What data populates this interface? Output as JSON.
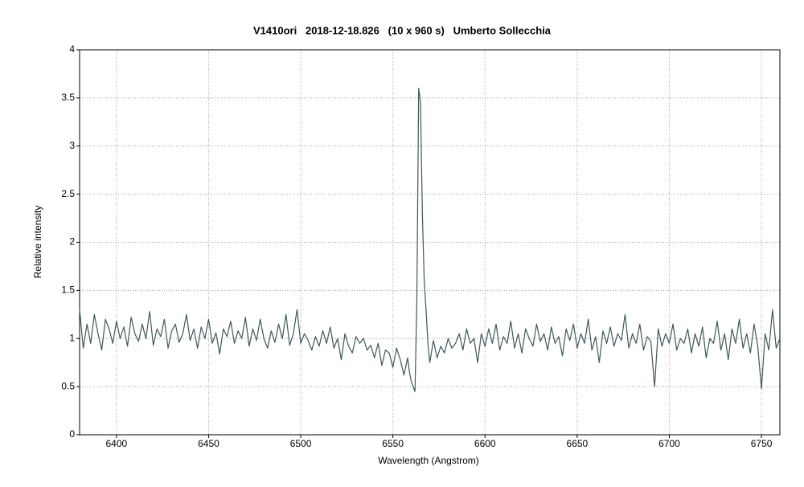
{
  "chart_data": {
    "type": "line",
    "title": "V1410ori   2018-12-18.826   (10 x 960 s)   Umberto Sollecchia",
    "xlabel": "Wavelength (Angstrom)",
    "ylabel": "Relative intensity",
    "xlim": [
      6380,
      6760
    ],
    "ylim": [
      0,
      4
    ],
    "xticks": [
      6400,
      6450,
      6500,
      6550,
      6600,
      6650,
      6700,
      6750
    ],
    "yticks": [
      0,
      0.5,
      1,
      1.5,
      2,
      2.5,
      3,
      3.5,
      4
    ],
    "grid": true,
    "series": [
      {
        "name": "V1410ori",
        "color": "#3e5858",
        "x": [
          6380,
          6382,
          6384,
          6386,
          6388,
          6390,
          6392,
          6394,
          6396,
          6398,
          6400,
          6402,
          6404,
          6406,
          6408,
          6410,
          6412,
          6414,
          6416,
          6418,
          6420,
          6422,
          6424,
          6426,
          6428,
          6430,
          6432,
          6434,
          6436,
          6438,
          6440,
          6442,
          6444,
          6446,
          6448,
          6450,
          6452,
          6454,
          6456,
          6458,
          6460,
          6462,
          6464,
          6466,
          6468,
          6470,
          6472,
          6474,
          6476,
          6478,
          6480,
          6482,
          6484,
          6486,
          6488,
          6490,
          6492,
          6494,
          6496,
          6498,
          6500,
          6502,
          6504,
          6506,
          6508,
          6510,
          6512,
          6514,
          6516,
          6518,
          6520,
          6522,
          6524,
          6526,
          6528,
          6530,
          6532,
          6534,
          6536,
          6538,
          6540,
          6542,
          6544,
          6546,
          6548,
          6550,
          6552,
          6554,
          6556,
          6558,
          6559,
          6560,
          6561,
          6562,
          6563,
          6564,
          6565,
          6566,
          6567,
          6568,
          6569,
          6570,
          6572,
          6574,
          6576,
          6578,
          6580,
          6582,
          6584,
          6586,
          6588,
          6590,
          6592,
          6594,
          6596,
          6598,
          6600,
          6602,
          6604,
          6606,
          6608,
          6610,
          6612,
          6614,
          6616,
          6618,
          6620,
          6622,
          6624,
          6626,
          6628,
          6630,
          6632,
          6634,
          6636,
          6638,
          6640,
          6642,
          6644,
          6646,
          6648,
          6650,
          6652,
          6654,
          6656,
          6658,
          6660,
          6662,
          6664,
          6666,
          6668,
          6670,
          6672,
          6674,
          6676,
          6678,
          6680,
          6682,
          6684,
          6686,
          6688,
          6690,
          6692,
          6694,
          6696,
          6698,
          6700,
          6702,
          6704,
          6706,
          6708,
          6710,
          6712,
          6714,
          6716,
          6718,
          6720,
          6722,
          6724,
          6726,
          6728,
          6730,
          6732,
          6734,
          6736,
          6738,
          6740,
          6742,
          6744,
          6746,
          6748,
          6750,
          6752,
          6754,
          6756,
          6758,
          6760
        ],
        "values": [
          1.3,
          0.9,
          1.15,
          0.95,
          1.25,
          1.05,
          0.88,
          1.2,
          1.1,
          0.95,
          1.18,
          1.0,
          1.12,
          0.92,
          1.22,
          1.05,
          0.97,
          1.15,
          1.0,
          1.28,
          0.93,
          1.1,
          1.02,
          1.2,
          0.9,
          1.08,
          1.15,
          0.96,
          1.05,
          1.25,
          0.98,
          1.1,
          0.9,
          1.12,
          1.0,
          1.2,
          0.95,
          1.06,
          0.84,
          1.1,
          1.02,
          1.18,
          0.95,
          1.08,
          1.0,
          1.22,
          0.92,
          1.1,
          0.98,
          1.2,
          1.0,
          0.9,
          1.08,
          0.96,
          1.15,
          1.0,
          1.25,
          0.93,
          1.05,
          1.3,
          0.95,
          1.05,
          0.98,
          0.88,
          1.02,
          0.92,
          1.08,
          0.95,
          1.12,
          0.9,
          1.0,
          0.78,
          1.05,
          0.92,
          0.85,
          1.02,
          0.95,
          1.0,
          0.88,
          0.93,
          0.8,
          0.95,
          0.72,
          0.88,
          0.85,
          0.7,
          0.9,
          0.78,
          0.62,
          0.8,
          0.65,
          0.55,
          0.5,
          0.45,
          1.4,
          3.6,
          3.45,
          2.3,
          1.6,
          1.3,
          0.95,
          0.75,
          0.98,
          0.8,
          0.92,
          0.85,
          1.0,
          0.9,
          0.95,
          1.05,
          0.88,
          1.1,
          0.95,
          1.0,
          0.75,
          1.05,
          0.92,
          1.1,
          0.95,
          1.15,
          0.88,
          1.02,
          0.95,
          1.18,
          0.9,
          1.05,
          0.85,
          1.1,
          1.0,
          0.92,
          1.15,
          0.97,
          1.05,
          0.88,
          1.12,
          0.95,
          1.02,
          0.82,
          1.1,
          0.98,
          1.15,
          0.9,
          1.05,
          0.95,
          1.2,
          0.88,
          1.02,
          0.75,
          1.08,
          0.95,
          1.12,
          0.92,
          1.05,
          0.98,
          1.25,
          0.9,
          1.05,
          0.95,
          1.15,
          0.88,
          1.02,
          0.97,
          0.5,
          1.1,
          0.92,
          1.05,
          0.95,
          1.15,
          0.88,
          1.0,
          0.95,
          1.1,
          0.85,
          1.05,
          0.92,
          1.12,
          0.8,
          1.0,
          0.95,
          1.18,
          0.88,
          1.05,
          0.78,
          1.1,
          0.95,
          1.2,
          0.9,
          1.05,
          0.85,
          1.15,
          0.92,
          0.48,
          1.05,
          0.88,
          1.3,
          0.9,
          1.0
        ]
      }
    ]
  }
}
